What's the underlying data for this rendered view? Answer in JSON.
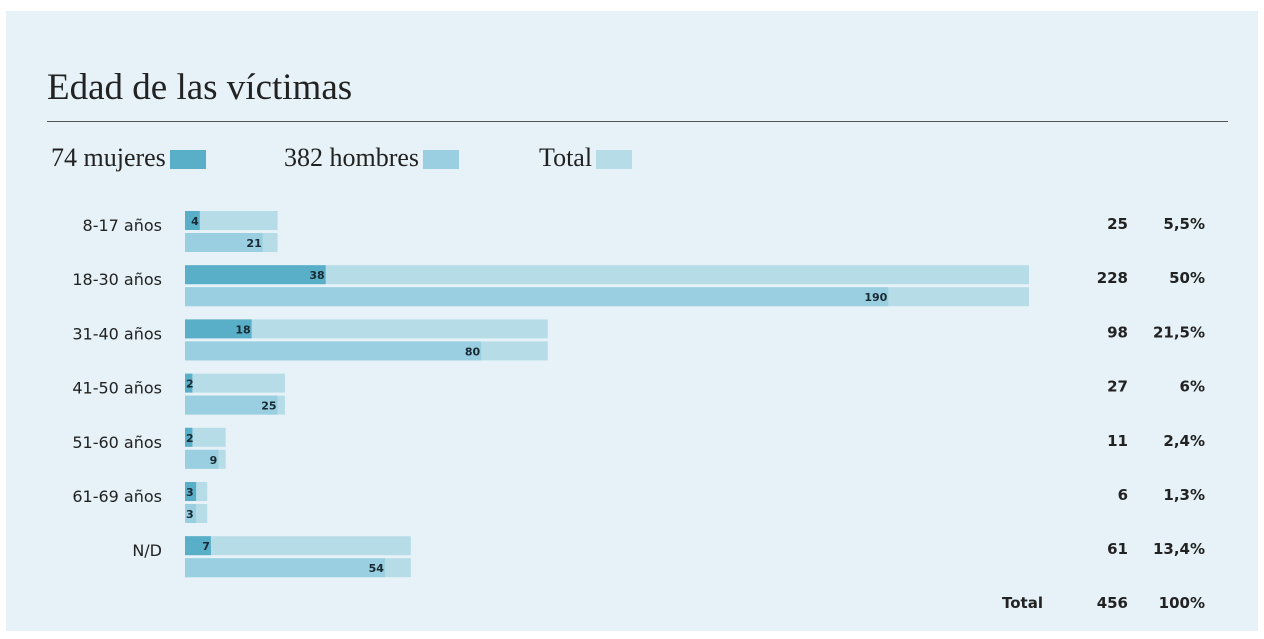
{
  "colors": {
    "background": "#e6f2f7",
    "mujeres": "#5aafc8",
    "hombres": "#99cfe0",
    "total": "#b6dde7"
  },
  "legend": {
    "mujeres": "74 mujeres",
    "hombres": "382 hombres",
    "total": "Total"
  },
  "summary": {
    "total_label": "Total",
    "total_value": "456",
    "total_pct": "100%"
  },
  "chart_data": {
    "type": "bar",
    "orientation": "horizontal",
    "title": "Edad de las víctimas",
    "categories": [
      "8-17 años",
      "18-30 años",
      "31-40 años",
      "41-50 años",
      "51-60 años",
      "61-69 años",
      "N/D"
    ],
    "series": [
      {
        "name": "74 mujeres",
        "values": [
          4,
          38,
          18,
          2,
          2,
          3,
          7
        ]
      },
      {
        "name": "382 hombres",
        "values": [
          21,
          190,
          80,
          25,
          9,
          3,
          54
        ]
      },
      {
        "name": "Total",
        "values": [
          25,
          228,
          98,
          27,
          11,
          6,
          61
        ]
      }
    ],
    "percentages": [
      "5,5%",
      "50%",
      "21,5%",
      "6%",
      "2,4%",
      "1,3%",
      "13,4%"
    ],
    "xlim": [
      0,
      228
    ],
    "grid": false,
    "legend_position": "top-left"
  }
}
